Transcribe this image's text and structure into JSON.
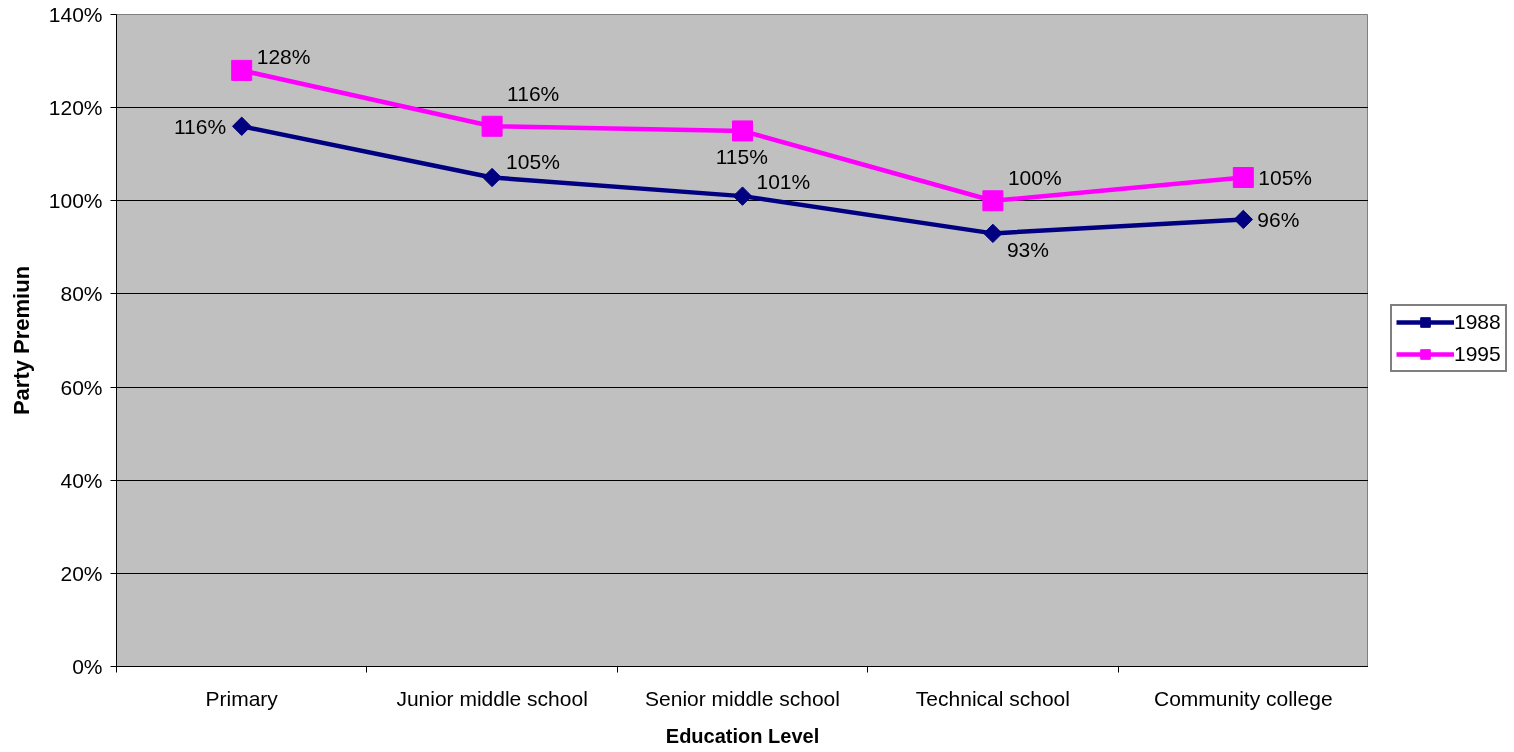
{
  "chart_data": {
    "type": "line",
    "xlabel": "Education Level",
    "ylabel": "Party Premiun",
    "categories": [
      "Primary",
      "Junior middle school",
      "Senior middle school",
      "Technical school",
      "Community college"
    ],
    "series": [
      {
        "name": "1988",
        "color": "#000080",
        "marker": "diamond",
        "values": [
          116,
          105,
          101,
          93,
          96
        ],
        "value_labels": [
          "116%",
          "105%",
          "101%",
          "93%",
          "96%"
        ]
      },
      {
        "name": "1995",
        "color": "#ff00ff",
        "marker": "square",
        "values": [
          128,
          116,
          115,
          100,
          105
        ],
        "value_labels": [
          "128%",
          "116%",
          "115%",
          "100%",
          "105%"
        ]
      }
    ],
    "ylim": [
      0,
      140
    ],
    "yticks": [
      {
        "value": 0,
        "label": "0%"
      },
      {
        "value": 20,
        "label": "20%"
      },
      {
        "value": 40,
        "label": "40%"
      },
      {
        "value": 60,
        "label": "60%"
      },
      {
        "value": 80,
        "label": "80%"
      },
      {
        "value": 100,
        "label": "100%"
      },
      {
        "value": 120,
        "label": "120%"
      },
      {
        "value": 140,
        "label": "140%"
      }
    ],
    "grid": "y",
    "legend": "right",
    "line_style": "solid"
  }
}
